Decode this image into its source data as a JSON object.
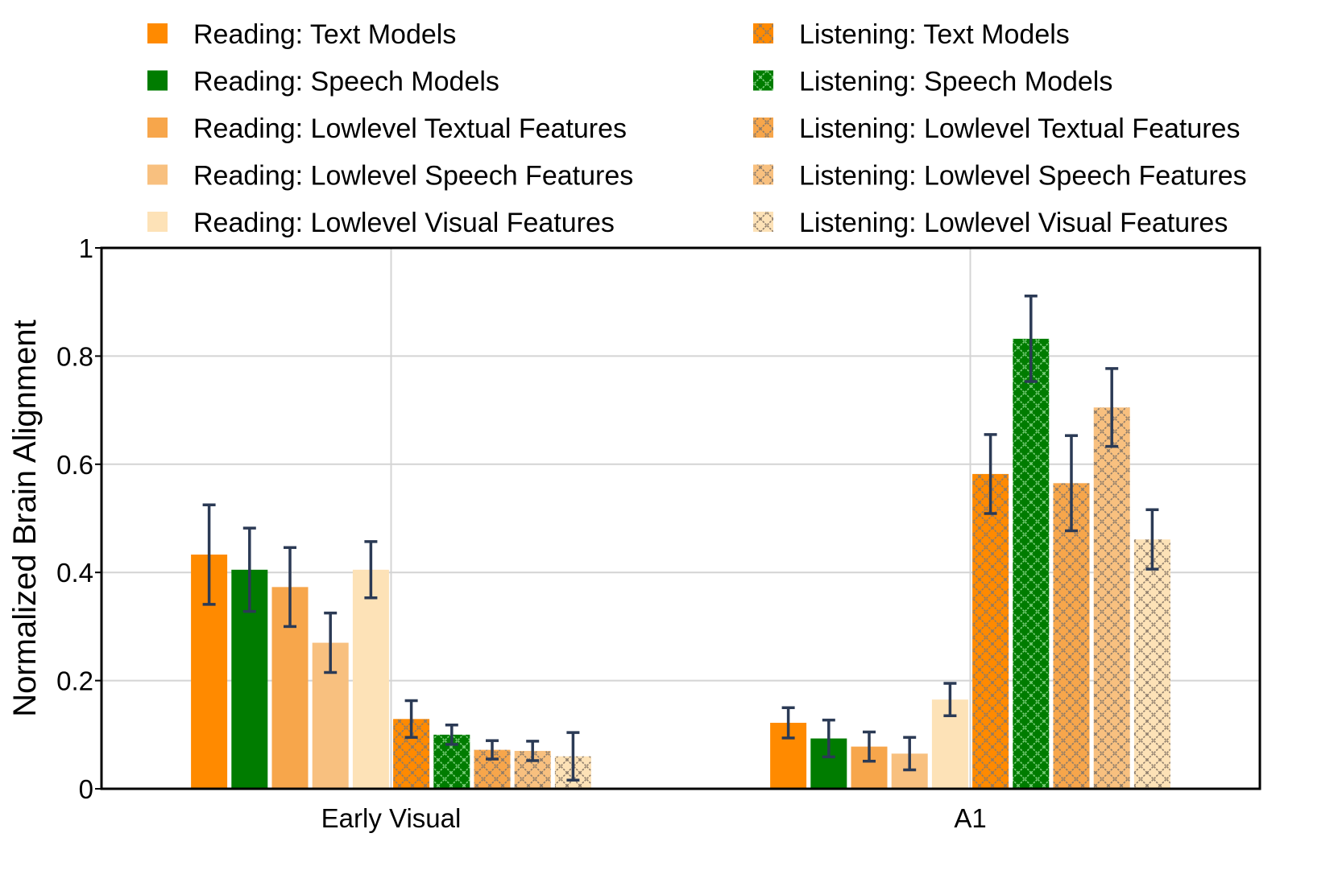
{
  "chart_data": {
    "type": "bar",
    "title": "",
    "xlabel": "",
    "ylabel": "Normalized Brain Alignment",
    "ylim": [
      0,
      1
    ],
    "yticks": [
      "0",
      "0.2",
      "0.4",
      "0.6",
      "0.8",
      "1"
    ],
    "ytick_values": [
      0,
      0.2,
      0.4,
      0.6,
      0.8,
      1
    ],
    "grid": true,
    "legend_position": "top",
    "categories": [
      "Early Visual",
      "A1"
    ],
    "series": [
      {
        "name": "Reading: Text Models",
        "color": "#ff8a00",
        "hatch": false,
        "values": [
          0.433,
          0.122
        ],
        "errors": [
          0.092,
          0.028
        ]
      },
      {
        "name": "Reading: Speech Models",
        "color": "#007c00",
        "hatch": false,
        "values": [
          0.405,
          0.093
        ],
        "errors": [
          0.077,
          0.034
        ]
      },
      {
        "name": "Reading: Lowlevel Textual Features",
        "color": "#f7a64b",
        "hatch": false,
        "values": [
          0.373,
          0.078
        ],
        "errors": [
          0.073,
          0.027
        ]
      },
      {
        "name": "Reading: Lowlevel Speech Features",
        "color": "#f8c07f",
        "hatch": false,
        "values": [
          0.27,
          0.065
        ],
        "errors": [
          0.055,
          0.03
        ]
      },
      {
        "name": "Reading: Lowlevel Visual Features",
        "color": "#fde2b7",
        "hatch": false,
        "values": [
          0.405,
          0.165
        ],
        "errors": [
          0.052,
          0.03
        ]
      },
      {
        "name": "Listening: Text Models",
        "color": "#ff8a00",
        "hatch": true,
        "values": [
          0.129,
          0.582
        ],
        "errors": [
          0.034,
          0.073
        ]
      },
      {
        "name": "Listening: Speech Models",
        "color": "#007c00",
        "hatch": true,
        "values": [
          0.1,
          0.832
        ],
        "errors": [
          0.018,
          0.079
        ]
      },
      {
        "name": "Listening: Lowlevel Textual Features",
        "color": "#f7a64b",
        "hatch": true,
        "values": [
          0.072,
          0.565
        ],
        "errors": [
          0.017,
          0.088
        ]
      },
      {
        "name": "Listening: Lowlevel Speech Features",
        "color": "#f8c07f",
        "hatch": true,
        "values": [
          0.07,
          0.705
        ],
        "errors": [
          0.018,
          0.072
        ]
      },
      {
        "name": "Listening: Lowlevel Visual Features",
        "color": "#fde2b7",
        "hatch": true,
        "values": [
          0.06,
          0.461
        ],
        "errors": [
          0.044,
          0.055
        ]
      }
    ],
    "errorbar_color": "#2b3a55"
  }
}
